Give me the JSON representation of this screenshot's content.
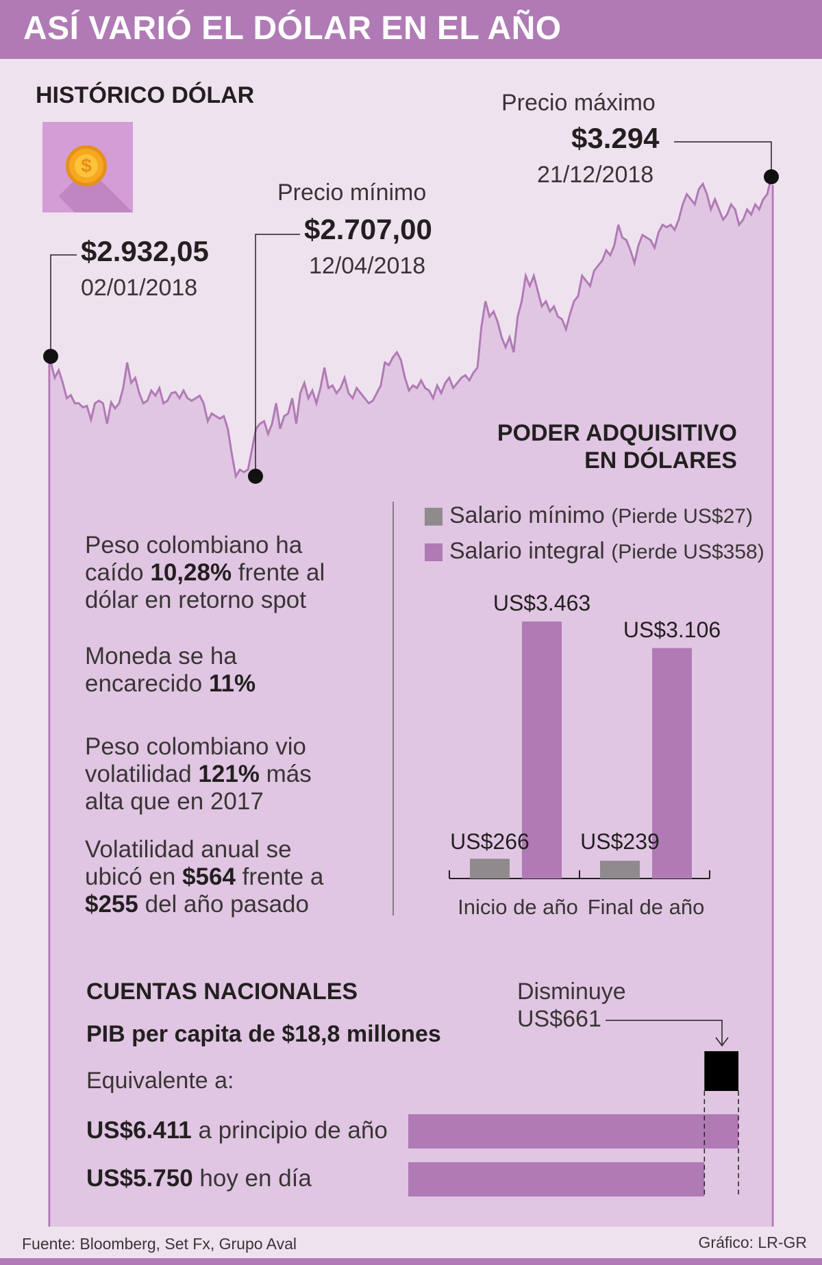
{
  "header": {
    "title": "ASÍ VARIÓ EL DÓLAR EN EL AÑO"
  },
  "historico": {
    "title": "HISTÓRICO DÓLAR",
    "icon": "dollar-coin-icon",
    "start": {
      "price": "$2.932,05",
      "date": "02/01/2018"
    },
    "min": {
      "label": "Precio mínimo",
      "price": "$2.707,00",
      "date": "12/04/2018"
    },
    "max": {
      "label": "Precio máximo",
      "price": "$3.294",
      "date": "21/12/2018"
    }
  },
  "stats": [
    {
      "pre": "Peso colombiano ha",
      "line2_pre": "caído ",
      "line2_bold": "10,28%",
      "line2_post": " frente al",
      "line3": "dólar en retorno spot"
    },
    {
      "line1": "Moneda se ha",
      "line2_pre": "encarecido ",
      "line2_bold": "11%"
    },
    {
      "line1": "Peso colombiano vio",
      "line2_pre": "volatilidad ",
      "line2_bold": "121%",
      "line2_post": " más",
      "line3": "alta que en 2017"
    },
    {
      "line1": "Volatilidad anual se",
      "line2_pre": "ubicó en ",
      "line2_bold": "$564",
      "line2_post": " frente a",
      "line3_bold": "$255",
      "line3_post": " del año pasado"
    }
  ],
  "poder": {
    "title_line1": "PODER ADQUISITIVO",
    "title_line2": "EN DÓLARES",
    "legend": [
      {
        "name": "Salario mínimo",
        "note": "(Pierde US$27)",
        "color": "#8f8a8c"
      },
      {
        "name": "Salario integral",
        "note": "(Pierde US$358)",
        "color": "#b07ab5"
      }
    ],
    "labels": {
      "inicio_minimo": "US$266",
      "inicio_integral": "US$3.463",
      "final_minimo": "US$239",
      "final_integral": "US$3.106"
    }
  },
  "cuentas": {
    "title": "CUENTAS NACIONALES",
    "pib": "PIB per capita de $18,8 millones",
    "equivalente": "Equivalente a:",
    "row1_bold": "US$6.411",
    "row1_text": " a principio de año",
    "row2_bold": "US$5.750",
    "row2_text": " hoy en día",
    "disminuye_line1": "Disminuye",
    "disminuye_line2": "US$661"
  },
  "footer": {
    "source": "Fuente: Bloomberg, Set Fx, Grupo Aval",
    "credit": "Gráfico: LR-GR"
  },
  "chart_data": [
    {
      "type": "area",
      "x_start": "02/01/2018",
      "x_end": "21/12/2018",
      "y": [
        2932.05,
        2900,
        2915,
        2890,
        2860,
        2866,
        2850,
        2850,
        2842,
        2845,
        2818,
        2850,
        2855,
        2850,
        2810,
        2852,
        2840,
        2850,
        2880,
        2930,
        2890,
        2900,
        2870,
        2850,
        2855,
        2875,
        2865,
        2880,
        2850,
        2855,
        2870,
        2872,
        2860,
        2875,
        2860,
        2855,
        2860,
        2865,
        2850,
        2815,
        2830,
        2825,
        2820,
        2825,
        2800,
        2750,
        2707,
        2720,
        2715,
        2720,
        2760,
        2800,
        2810,
        2815,
        2790,
        2810,
        2850,
        2800,
        2825,
        2830,
        2860,
        2810,
        2870,
        2890,
        2860,
        2875,
        2850,
        2880,
        2920,
        2880,
        2885,
        2870,
        2880,
        2900,
        2870,
        2860,
        2880,
        2870,
        2860,
        2850,
        2855,
        2870,
        2885,
        2930,
        2925,
        2940,
        2950,
        2935,
        2900,
        2875,
        2885,
        2880,
        2895,
        2880,
        2875,
        2860,
        2885,
        2870,
        2890,
        2900,
        2880,
        2890,
        2900,
        2905,
        2895,
        2910,
        2920,
        3000,
        3050,
        3020,
        3030,
        3010,
        2980,
        2960,
        2980,
        2950,
        3020,
        3050,
        3100,
        3080,
        3100,
        3070,
        3040,
        3050,
        3030,
        3040,
        3020,
        3015,
        2995,
        3025,
        3050,
        3060,
        3100,
        3090,
        3080,
        3110,
        3120,
        3130,
        3150,
        3140,
        3160,
        3200,
        3175,
        3170,
        3150,
        3125,
        3160,
        3180,
        3175,
        3170,
        3155,
        3185,
        3200,
        3195,
        3200,
        3190,
        3210,
        3240,
        3260,
        3250,
        3240,
        3270,
        3280,
        3260,
        3230,
        3250,
        3230,
        3210,
        3220,
        3240,
        3230,
        3200,
        3210,
        3230,
        3220,
        3240,
        3230,
        3250,
        3260,
        3294
      ]
    },
    {
      "type": "bar",
      "title": "PODER ADQUISITIVO EN DÓLARES",
      "categories": [
        "Inicio de año",
        "Final de año"
      ],
      "series": [
        {
          "name": "Salario mínimo",
          "values": [
            266,
            239
          ]
        },
        {
          "name": "Salario integral",
          "values": [
            3463,
            3106
          ]
        }
      ],
      "legend": "top"
    },
    {
      "type": "bar",
      "title": "CUENTAS NACIONALES",
      "orientation": "horizontal",
      "categories": [
        "a principio de año",
        "hoy en día"
      ],
      "values": [
        6411,
        5750
      ]
    }
  ]
}
